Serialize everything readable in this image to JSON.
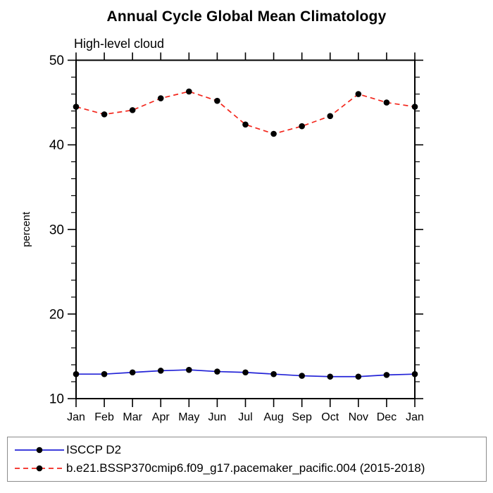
{
  "header": {
    "title": "Annual Cycle Global Mean Climatology",
    "subtitle": "High-level cloud"
  },
  "chart_data": {
    "type": "line",
    "title": "Annual Cycle Global Mean Climatology",
    "subtitle": "High-level cloud",
    "xlabel": "",
    "ylabel": "percent",
    "categories": [
      "Jan",
      "Feb",
      "Mar",
      "Apr",
      "May",
      "Jun",
      "Jul",
      "Aug",
      "Sep",
      "Oct",
      "Nov",
      "Dec",
      "Jan"
    ],
    "ylim": [
      10,
      50
    ],
    "yticks": [
      10,
      20,
      30,
      40,
      50
    ],
    "minor_tick_step": 2,
    "grid": false,
    "legend_position": "bottom",
    "axis_color": "#000000",
    "marker_color": "#000000",
    "series": [
      {
        "name": "ISCCP D2",
        "color": "#2323d7",
        "line_style": "solid",
        "values": [
          12.9,
          12.9,
          13.1,
          13.3,
          13.4,
          13.2,
          13.1,
          12.9,
          12.7,
          12.6,
          12.6,
          12.8,
          12.9
        ]
      },
      {
        "name": "b.e21.BSSP370cmip6.f09_g17.pacemaker_pacific.004 (2015-2018)",
        "color": "#f3261c",
        "line_style": "dashed",
        "values": [
          44.5,
          43.6,
          44.1,
          45.5,
          46.3,
          45.2,
          42.4,
          41.3,
          42.2,
          43.4,
          46.0,
          45.0,
          44.5
        ]
      }
    ]
  }
}
